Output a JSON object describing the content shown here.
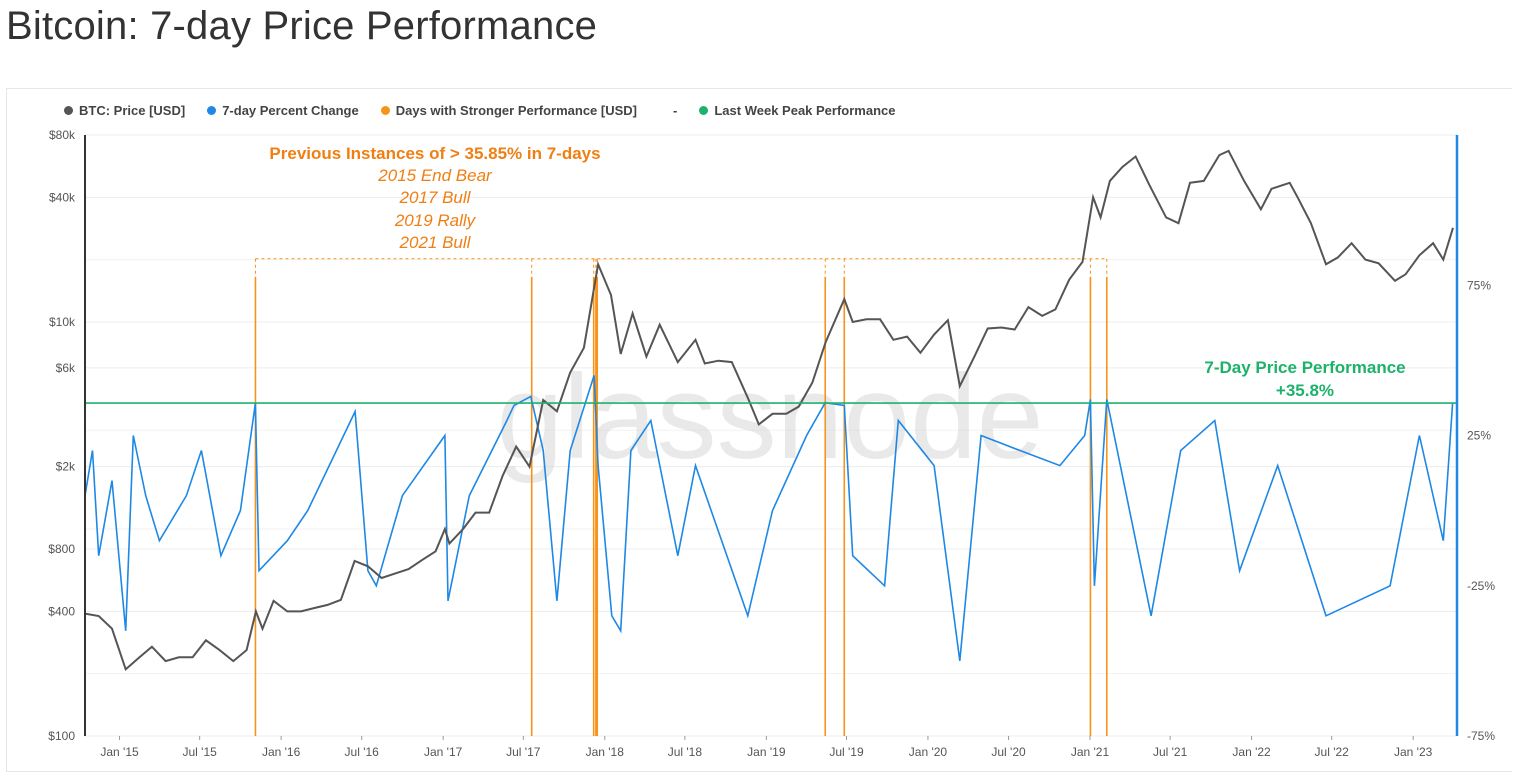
{
  "page": {
    "title": "Bitcoin: 7-day Price Performance"
  },
  "legend": {
    "items": [
      {
        "label": "BTC: Price [USD]",
        "color": "#555555"
      },
      {
        "label": "7-day Percent Change",
        "color": "#1e88e5"
      },
      {
        "label": "Days with Stronger Performance [USD]",
        "color": "#f7931a"
      },
      {
        "label": "-",
        "color": ""
      },
      {
        "label": "Last Week Peak Performance",
        "color": "#1db26b"
      }
    ]
  },
  "annotations": {
    "instances_title": "Previous Instances of > 35.85% in 7-days",
    "instances": [
      "2015 End Bear",
      "2017 Bull",
      "2019 Rally",
      "2021 Bull"
    ],
    "peak_label": "7-Day Price Performance",
    "peak_value": "+35.8%",
    "watermark": "glassnode"
  },
  "colors": {
    "price": "#555555",
    "change": "#1e88e5",
    "stronger": "#f7931a",
    "peak": "#1db26b",
    "annotation": "#f07f13"
  },
  "chart_data": {
    "type": "line",
    "title": "Bitcoin: 7-day Price Performance",
    "y_left": {
      "scale": "log",
      "range": [
        100,
        80000
      ],
      "ticks": [
        100,
        400,
        800,
        2000,
        6000,
        10000,
        40000,
        80000
      ],
      "tick_labels": [
        "$100",
        "$400",
        "$800",
        "$2k",
        "$6k",
        "$10k",
        "$40k",
        "$80k"
      ]
    },
    "y_right": {
      "scale": "linear",
      "range": [
        -75,
        125
      ],
      "ticks": [
        -75,
        -25,
        25,
        75
      ],
      "tick_labels": [
        "-75%",
        "-25%",
        "25%",
        "75%"
      ]
    },
    "x_ticks": [
      {
        "date": "2015-01-01",
        "label": "Jan '15"
      },
      {
        "date": "2015-07-01",
        "label": "Jul '15"
      },
      {
        "date": "2016-01-01",
        "label": "Jan '16"
      },
      {
        "date": "2016-07-01",
        "label": "Jul '16"
      },
      {
        "date": "2017-01-01",
        "label": "Jan '17"
      },
      {
        "date": "2017-07-01",
        "label": "Jul '17"
      },
      {
        "date": "2018-01-01",
        "label": "Jan '18"
      },
      {
        "date": "2018-07-01",
        "label": "Jul '18"
      },
      {
        "date": "2019-01-01",
        "label": "Jan '19"
      },
      {
        "date": "2019-07-01",
        "label": "Jul '19"
      },
      {
        "date": "2020-01-01",
        "label": "Jan '20"
      },
      {
        "date": "2020-07-01",
        "label": "Jul '20"
      },
      {
        "date": "2021-01-01",
        "label": "Jan '21"
      },
      {
        "date": "2021-07-01",
        "label": "Jul '21"
      },
      {
        "date": "2022-01-01",
        "label": "Jan '22"
      },
      {
        "date": "2022-07-01",
        "label": "Jul '22"
      },
      {
        "date": "2023-01-01",
        "label": "Jan '23"
      }
    ],
    "x_range": [
      "2014-10-15",
      "2023-04-10"
    ],
    "series": [
      {
        "name": "BTC: Price [USD]",
        "axis": "left",
        "points": [
          [
            "2014-10-15",
            390
          ],
          [
            "2014-11-15",
            380
          ],
          [
            "2014-12-15",
            330
          ],
          [
            "2015-01-15",
            210
          ],
          [
            "2015-02-15",
            240
          ],
          [
            "2015-03-15",
            270
          ],
          [
            "2015-04-15",
            230
          ],
          [
            "2015-05-15",
            240
          ],
          [
            "2015-06-15",
            240
          ],
          [
            "2015-07-15",
            290
          ],
          [
            "2015-08-15",
            260
          ],
          [
            "2015-09-15",
            230
          ],
          [
            "2015-10-15",
            260
          ],
          [
            "2015-11-05",
            400
          ],
          [
            "2015-11-20",
            330
          ],
          [
            "2015-12-15",
            450
          ],
          [
            "2016-01-15",
            400
          ],
          [
            "2016-02-15",
            400
          ],
          [
            "2016-03-15",
            415
          ],
          [
            "2016-04-15",
            430
          ],
          [
            "2016-05-15",
            455
          ],
          [
            "2016-06-15",
            700
          ],
          [
            "2016-07-15",
            660
          ],
          [
            "2016-08-15",
            580
          ],
          [
            "2016-09-15",
            610
          ],
          [
            "2016-10-15",
            640
          ],
          [
            "2016-11-15",
            710
          ],
          [
            "2016-12-15",
            780
          ],
          [
            "2017-01-05",
            1000
          ],
          [
            "2017-01-15",
            850
          ],
          [
            "2017-02-15",
            1000
          ],
          [
            "2017-03-15",
            1200
          ],
          [
            "2017-04-15",
            1200
          ],
          [
            "2017-05-15",
            1800
          ],
          [
            "2017-06-15",
            2500
          ],
          [
            "2017-07-15",
            2000
          ],
          [
            "2017-08-15",
            4200
          ],
          [
            "2017-09-15",
            3700
          ],
          [
            "2017-10-15",
            5700
          ],
          [
            "2017-11-15",
            7500
          ],
          [
            "2017-12-17",
            19000
          ],
          [
            "2018-01-15",
            13500
          ],
          [
            "2018-02-06",
            7000
          ],
          [
            "2018-03-05",
            11000
          ],
          [
            "2018-04-05",
            6800
          ],
          [
            "2018-05-05",
            9700
          ],
          [
            "2018-06-15",
            6400
          ],
          [
            "2018-07-25",
            8200
          ],
          [
            "2018-08-15",
            6300
          ],
          [
            "2018-09-15",
            6500
          ],
          [
            "2018-10-15",
            6400
          ],
          [
            "2018-11-20",
            4300
          ],
          [
            "2018-12-15",
            3200
          ],
          [
            "2019-01-15",
            3600
          ],
          [
            "2019-02-15",
            3600
          ],
          [
            "2019-03-15",
            3900
          ],
          [
            "2019-04-15",
            5100
          ],
          [
            "2019-05-15",
            8000
          ],
          [
            "2019-06-26",
            12900
          ],
          [
            "2019-07-15",
            10000
          ],
          [
            "2019-08-15",
            10300
          ],
          [
            "2019-09-15",
            10300
          ],
          [
            "2019-10-15",
            8200
          ],
          [
            "2019-11-15",
            8500
          ],
          [
            "2019-12-15",
            7100
          ],
          [
            "2020-01-15",
            8700
          ],
          [
            "2020-02-15",
            10200
          ],
          [
            "2020-03-13",
            4900
          ],
          [
            "2020-04-15",
            6800
          ],
          [
            "2020-05-15",
            9300
          ],
          [
            "2020-06-15",
            9400
          ],
          [
            "2020-07-15",
            9200
          ],
          [
            "2020-08-15",
            11800
          ],
          [
            "2020-09-15",
            10700
          ],
          [
            "2020-10-15",
            11500
          ],
          [
            "2020-11-15",
            16000
          ],
          [
            "2020-12-15",
            19500
          ],
          [
            "2021-01-08",
            40000
          ],
          [
            "2021-01-25",
            32000
          ],
          [
            "2021-02-15",
            48000
          ],
          [
            "2021-03-15",
            56000
          ],
          [
            "2021-04-14",
            63000
          ],
          [
            "2021-05-15",
            46000
          ],
          [
            "2021-06-22",
            32000
          ],
          [
            "2021-07-20",
            30000
          ],
          [
            "2021-08-15",
            47000
          ],
          [
            "2021-09-15",
            48000
          ],
          [
            "2021-10-20",
            64000
          ],
          [
            "2021-11-10",
            67000
          ],
          [
            "2021-12-15",
            48000
          ],
          [
            "2022-01-22",
            35000
          ],
          [
            "2022-02-15",
            44000
          ],
          [
            "2022-03-28",
            47000
          ],
          [
            "2022-04-15",
            40000
          ],
          [
            "2022-05-15",
            30000
          ],
          [
            "2022-06-18",
            19000
          ],
          [
            "2022-07-15",
            20500
          ],
          [
            "2022-08-15",
            24000
          ],
          [
            "2022-09-15",
            20000
          ],
          [
            "2022-10-15",
            19200
          ],
          [
            "2022-11-21",
            15800
          ],
          [
            "2022-12-15",
            17000
          ],
          [
            "2023-01-15",
            21000
          ],
          [
            "2023-02-15",
            24000
          ],
          [
            "2023-03-10",
            20000
          ],
          [
            "2023-04-01",
            28500
          ]
        ]
      },
      {
        "name": "7-day Percent Change",
        "axis": "right",
        "points": [
          [
            "2014-10-15",
            5
          ],
          [
            "2014-11-01",
            20
          ],
          [
            "2014-11-15",
            -15
          ],
          [
            "2014-12-15",
            10
          ],
          [
            "2015-01-15",
            -40
          ],
          [
            "2015-02-01",
            25
          ],
          [
            "2015-03-01",
            5
          ],
          [
            "2015-04-01",
            -10
          ],
          [
            "2015-06-01",
            5
          ],
          [
            "2015-07-05",
            20
          ],
          [
            "2015-08-18",
            -15
          ],
          [
            "2015-10-01",
            0
          ],
          [
            "2015-11-04",
            35.8
          ],
          [
            "2015-11-12",
            -20
          ],
          [
            "2016-01-15",
            -10
          ],
          [
            "2016-03-01",
            0
          ],
          [
            "2016-06-16",
            33
          ],
          [
            "2016-07-15",
            -20
          ],
          [
            "2016-08-03",
            -25
          ],
          [
            "2016-10-01",
            5
          ],
          [
            "2017-01-05",
            25
          ],
          [
            "2017-01-12",
            -30
          ],
          [
            "2017-03-01",
            5
          ],
          [
            "2017-05-25",
            30
          ],
          [
            "2017-06-10",
            35
          ],
          [
            "2017-07-18",
            38
          ],
          [
            "2017-08-15",
            20
          ],
          [
            "2017-09-15",
            -30
          ],
          [
            "2017-10-15",
            20
          ],
          [
            "2017-12-08",
            45
          ],
          [
            "2017-12-17",
            15
          ],
          [
            "2018-01-17",
            -35
          ],
          [
            "2018-02-06",
            -40
          ],
          [
            "2018-03-01",
            20
          ],
          [
            "2018-04-15",
            30
          ],
          [
            "2018-06-15",
            -15
          ],
          [
            "2018-07-25",
            15
          ],
          [
            "2018-11-20",
            -35
          ],
          [
            "2019-01-15",
            0
          ],
          [
            "2019-04-02",
            25
          ],
          [
            "2019-05-14",
            35.9
          ],
          [
            "2019-06-26",
            35
          ],
          [
            "2019-07-15",
            -15
          ],
          [
            "2019-09-25",
            -25
          ],
          [
            "2019-10-26",
            30
          ],
          [
            "2020-01-15",
            15
          ],
          [
            "2020-03-13",
            -50
          ],
          [
            "2020-04-30",
            25
          ],
          [
            "2020-07-27",
            20
          ],
          [
            "2020-10-25",
            15
          ],
          [
            "2020-12-20",
            25
          ],
          [
            "2021-01-02",
            37
          ],
          [
            "2021-01-11",
            -25
          ],
          [
            "2021-02-08",
            37
          ],
          [
            "2021-05-19",
            -35
          ],
          [
            "2021-07-25",
            20
          ],
          [
            "2021-10-10",
            30
          ],
          [
            "2021-12-05",
            -20
          ],
          [
            "2022-03-01",
            15
          ],
          [
            "2022-06-18",
            -35
          ],
          [
            "2022-11-10",
            -25
          ],
          [
            "2023-01-15",
            25
          ],
          [
            "2023-03-10",
            -10
          ],
          [
            "2023-03-31",
            35.8
          ]
        ]
      },
      {
        "name": "Days with Stronger Performance [USD]",
        "axis": "left",
        "dates": [
          "2015-11-04",
          "2017-07-20",
          "2017-12-07",
          "2017-12-12",
          "2017-12-15",
          "2019-05-14",
          "2019-06-26",
          "2021-01-02",
          "2021-02-08"
        ]
      },
      {
        "name": "Last Week Peak Performance",
        "axis": "right",
        "value": 35.8
      }
    ]
  }
}
